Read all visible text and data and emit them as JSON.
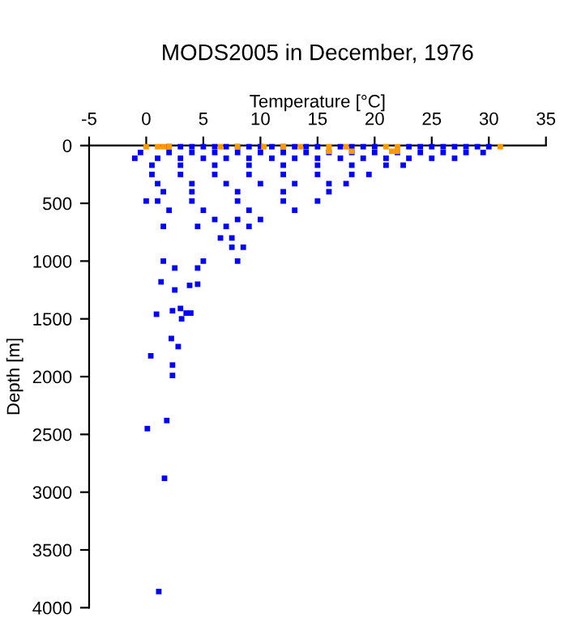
{
  "chart_data": {
    "type": "scatter",
    "title": "MODS2005 in December, 1976",
    "xlabel": "Temperature [°C]",
    "ylabel": "Depth [m]",
    "xlim": [
      -5,
      35
    ],
    "xticks": [
      -5,
      0,
      5,
      10,
      15,
      20,
      25,
      30,
      35
    ],
    "ylim": [
      4000,
      0
    ],
    "yticks": [
      0,
      500,
      1000,
      1500,
      2000,
      2500,
      3000,
      3500,
      4000
    ],
    "grid": false,
    "legend": false,
    "marker": "square",
    "series": [
      {
        "color": "#0000ff",
        "x": [
          2,
          3,
          4,
          5,
          6,
          7,
          8,
          9,
          10,
          11,
          12,
          13,
          14,
          15,
          17,
          18,
          19,
          20,
          23,
          24,
          25,
          26,
          27,
          28,
          29,
          30,
          -0.5,
          2,
          4,
          6,
          8,
          10,
          12,
          14,
          16,
          18,
          20,
          22,
          24,
          26,
          28,
          29.5,
          -1,
          1,
          3,
          5,
          7,
          9,
          11,
          13,
          15,
          17,
          19,
          21,
          23,
          25,
          27,
          0.5,
          3,
          6,
          9,
          12,
          15,
          18,
          21,
          22.5,
          0.5,
          3,
          6,
          9,
          12,
          15,
          18,
          19.5,
          1,
          4,
          7,
          10,
          13,
          16,
          17.5,
          1.5,
          4,
          8,
          12,
          16,
          0,
          1,
          4,
          8,
          12,
          15,
          2,
          5,
          9,
          13,
          6,
          8,
          10,
          1.5,
          4.5,
          7,
          9,
          6.5,
          7.5,
          7.5,
          8.5,
          1.5,
          5,
          8,
          2.5,
          4.5,
          1.3,
          2.5,
          3.8,
          4.5,
          0.9,
          2.3,
          3,
          3.5,
          3.9,
          3.1,
          2.2,
          2.8,
          0.4,
          2.3,
          2.3,
          1.8,
          0.1,
          1.6,
          1.1
        ],
        "values": [
          10,
          10,
          10,
          10,
          10,
          10,
          10,
          10,
          10,
          10,
          10,
          10,
          10,
          10,
          10,
          10,
          10,
          10,
          10,
          10,
          10,
          10,
          10,
          10,
          10,
          10,
          60,
          60,
          60,
          60,
          60,
          60,
          60,
          60,
          60,
          60,
          60,
          60,
          60,
          60,
          60,
          60,
          110,
          110,
          110,
          110,
          110,
          110,
          110,
          110,
          110,
          110,
          110,
          110,
          110,
          110,
          110,
          170,
          170,
          170,
          170,
          170,
          170,
          170,
          170,
          170,
          250,
          250,
          250,
          250,
          250,
          250,
          250,
          250,
          330,
          330,
          330,
          330,
          330,
          330,
          330,
          400,
          400,
          400,
          400,
          400,
          480,
          480,
          480,
          480,
          480,
          480,
          560,
          560,
          560,
          560,
          640,
          640,
          640,
          700,
          700,
          700,
          700,
          800,
          800,
          880,
          880,
          1000,
          1000,
          1000,
          1060,
          1060,
          1180,
          1250,
          1210,
          1200,
          1460,
          1430,
          1410,
          1450,
          1450,
          1500,
          1670,
          1740,
          1820,
          1900,
          1990,
          2380,
          2450,
          2880,
          3860
        ]
      },
      {
        "color": "#ff9900",
        "x": [
          0,
          1,
          1.5,
          2,
          6.5,
          8,
          10.3,
          12,
          13.5,
          16,
          17.5,
          21,
          22,
          31,
          16,
          18,
          21.5,
          22
        ],
        "values": [
          10,
          10,
          10,
          10,
          10,
          10,
          10,
          10,
          10,
          10,
          10,
          10,
          10,
          10,
          50,
          50,
          50,
          50
        ]
      }
    ]
  }
}
